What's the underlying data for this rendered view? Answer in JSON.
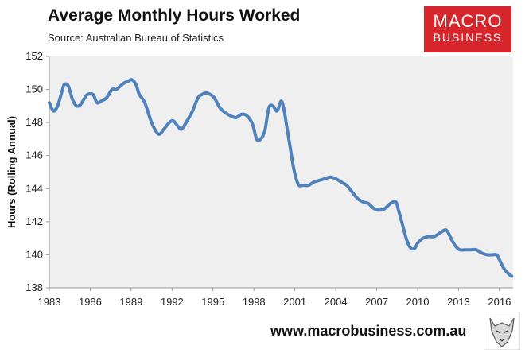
{
  "header": {
    "title": "Average Monthly Hours Worked",
    "subtitle": "Source: Australian Bureau of Statistics"
  },
  "logo": {
    "top": "MACRO",
    "bottom": "BUSINESS"
  },
  "footer": {
    "url": "www.macrobusiness.com.au"
  },
  "colors": {
    "line": "#4f81bd",
    "plot_bg": "#efefef",
    "logo_bg": "#d7262b"
  },
  "chart_data": {
    "type": "line",
    "title": "Average Monthly Hours Worked",
    "subtitle": "Source: Australian Bureau of Statistics",
    "xlabel": "",
    "ylabel": "Hours (Rolling Annual)",
    "xlim": [
      1983,
      2017
    ],
    "ylim": [
      138,
      152
    ],
    "x_ticks": [
      1983,
      1986,
      1989,
      1992,
      1995,
      1998,
      2001,
      2004,
      2007,
      2010,
      2013,
      2016
    ],
    "y_ticks": [
      138,
      140,
      142,
      144,
      146,
      148,
      150,
      152
    ],
    "grid": false,
    "legend": "none",
    "series": [
      {
        "x": [
          1983.0,
          1983.3,
          1983.6,
          1983.9,
          1984.1,
          1984.4,
          1984.7,
          1985.0,
          1985.3,
          1985.6,
          1985.8,
          1986.2,
          1986.5,
          1986.8,
          1987.2,
          1987.6,
          1987.9,
          1988.2,
          1988.5,
          1988.8,
          1989.0,
          1989.2,
          1989.4,
          1989.6,
          1990.0,
          1990.5,
          1991.0,
          1991.4,
          1991.8,
          1992.1,
          1992.4,
          1992.7,
          1993.1,
          1993.5,
          1993.9,
          1994.2,
          1994.5,
          1994.8,
          1995.1,
          1995.5,
          1995.9,
          1996.3,
          1996.7,
          1997.1,
          1997.5,
          1997.9,
          1998.2,
          1998.5,
          1998.8,
          1999.1,
          1999.4,
          1999.7,
          2000.0,
          2000.2,
          2000.4,
          2000.6,
          2000.9,
          2001.1,
          2001.3,
          2001.6,
          2002.0,
          2002.4,
          2002.8,
          2003.2,
          2003.6,
          2004.0,
          2004.4,
          2004.8,
          2005.2,
          2005.6,
          2006.0,
          2006.4,
          2006.8,
          2007.2,
          2007.6,
          2008.0,
          2008.4,
          2008.6,
          2008.9,
          2009.2,
          2009.5,
          2009.8,
          2010.0,
          2010.4,
          2010.8,
          2011.2,
          2011.6,
          2012.0,
          2012.2,
          2012.5,
          2012.8,
          2013.1,
          2013.5,
          2013.9,
          2014.3,
          2014.7,
          2015.1,
          2015.5,
          2015.8,
          2016.0,
          2016.3,
          2016.6,
          2016.9
        ],
        "values": [
          149.2,
          148.7,
          149.0,
          149.8,
          150.3,
          150.2,
          149.4,
          149.0,
          149.1,
          149.5,
          149.7,
          149.7,
          149.2,
          149.3,
          149.5,
          150.0,
          150.0,
          150.2,
          150.4,
          150.5,
          150.6,
          150.5,
          150.2,
          149.7,
          149.2,
          148.0,
          147.3,
          147.6,
          148.0,
          148.1,
          147.8,
          147.6,
          148.1,
          148.7,
          149.5,
          149.7,
          149.8,
          149.7,
          149.5,
          148.9,
          148.6,
          148.4,
          148.3,
          148.5,
          148.4,
          147.9,
          147.0,
          147.0,
          147.5,
          148.9,
          149.0,
          148.7,
          149.3,
          148.8,
          147.8,
          146.8,
          145.3,
          144.6,
          144.2,
          144.2,
          144.2,
          144.4,
          144.5,
          144.6,
          144.7,
          144.6,
          144.4,
          144.2,
          143.8,
          143.4,
          143.2,
          143.1,
          142.8,
          142.7,
          142.8,
          143.1,
          143.2,
          142.7,
          141.8,
          140.9,
          140.4,
          140.4,
          140.7,
          141.0,
          141.1,
          141.1,
          141.3,
          141.5,
          141.4,
          140.9,
          140.5,
          140.3,
          140.3,
          140.3,
          140.3,
          140.1,
          140.0,
          140.0,
          140.0,
          139.7,
          139.2,
          138.9,
          138.7
        ]
      }
    ]
  }
}
